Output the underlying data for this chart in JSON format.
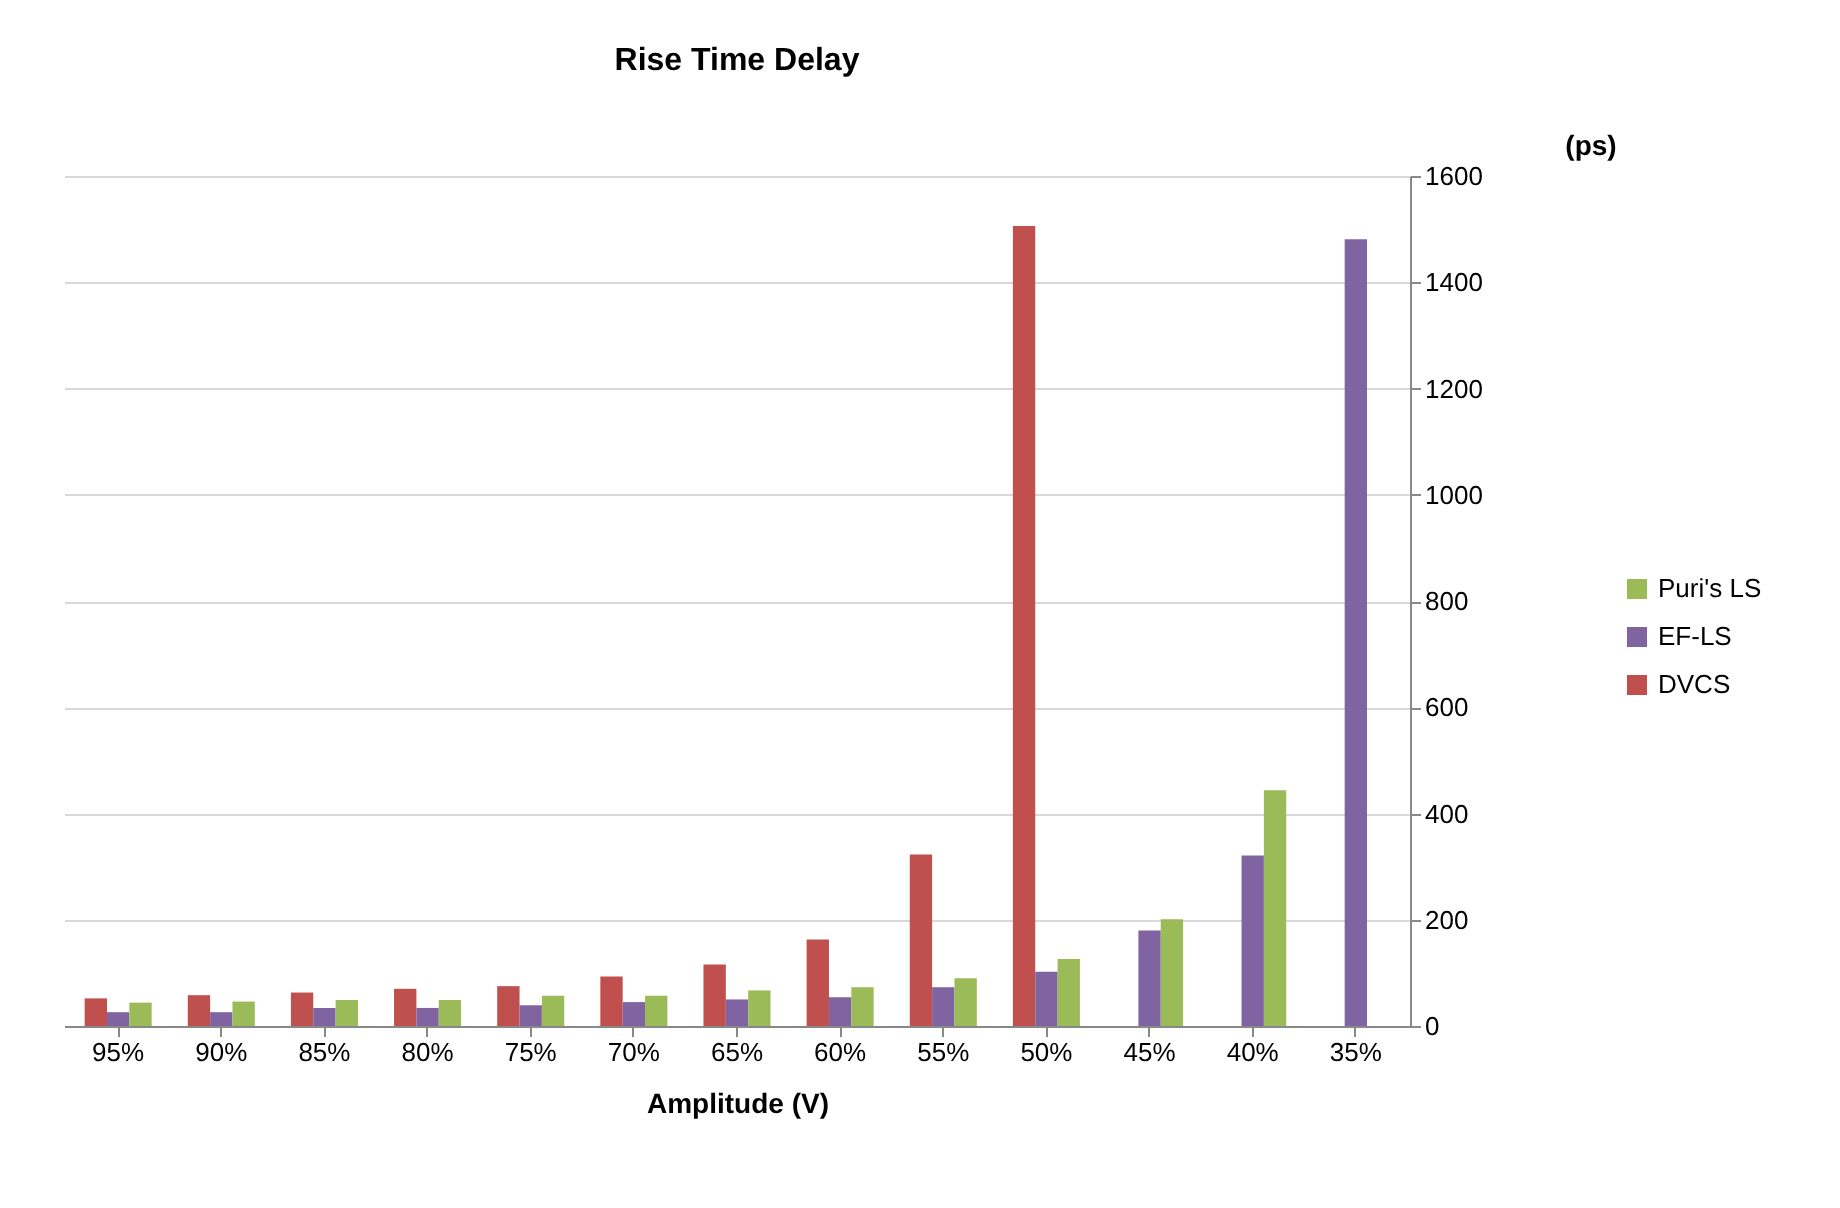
{
  "chart_data": {
    "type": "bar",
    "title": "Rise Time Delay",
    "xlabel": "Amplitude (V)",
    "ylabel": "(ps)",
    "categories": [
      "95%",
      "90%",
      "85%",
      "80%",
      "75%",
      "70%",
      "65%",
      "60%",
      "55%",
      "50%",
      "45%",
      "40%",
      "35%"
    ],
    "series": [
      {
        "name": "DVCS",
        "color": "#c0504d",
        "values": [
          52,
          58,
          63,
          70,
          75,
          93,
          116,
          163,
          323,
          1506,
          null,
          null,
          null
        ]
      },
      {
        "name": "EF-LS",
        "color": "#8064a2",
        "values": [
          26,
          26,
          34,
          34,
          39,
          45,
          50,
          54,
          73,
          102,
          180,
          321,
          1481
        ]
      },
      {
        "name": "Puri's LS",
        "color": "#9bbb59",
        "values": [
          44,
          46,
          49,
          49,
          57,
          57,
          67,
          73,
          90,
          126,
          201,
          444,
          null
        ]
      }
    ],
    "ylim": [
      0,
      1600
    ],
    "yticks": [
      0,
      200,
      400,
      600,
      800,
      1000,
      1200,
      1400,
      1600
    ],
    "grid": "y",
    "legend": "right"
  }
}
